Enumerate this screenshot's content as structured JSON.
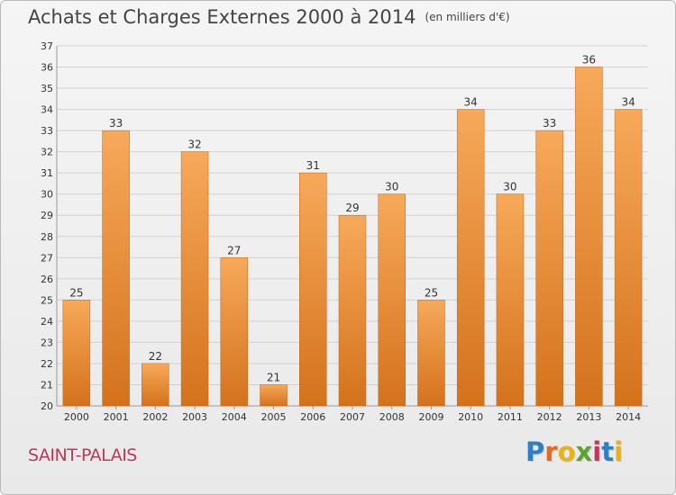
{
  "title": "Achats et Charges Externes 2000 à 2014",
  "unit": "(en milliers d'€)",
  "commune": "SAINT-PALAIS",
  "logo": {
    "letters": [
      "P",
      "r",
      "o",
      "x",
      "i",
      "t",
      "i"
    ],
    "colors": [
      "#2f7fc4",
      "#e46b1b",
      "#e8b21b",
      "#5aa531",
      "#c0375a",
      "#2f7fc4",
      "#e8b21b"
    ]
  },
  "colors": {
    "bar_top": "#f7a95a",
    "bar_bottom": "#d4721c",
    "bar_edge": "#c0661a",
    "grid": "#d2d2d2",
    "axis": "#999999"
  },
  "chart_data": {
    "type": "bar",
    "title": "Achats et Charges Externes 2000 à 2014",
    "categories": [
      "2000",
      "2001",
      "2002",
      "2003",
      "2004",
      "2005",
      "2006",
      "2007",
      "2008",
      "2009",
      "2010",
      "2011",
      "2012",
      "2013",
      "2014"
    ],
    "values": [
      25,
      33,
      22,
      32,
      27,
      21,
      31,
      29,
      30,
      25,
      34,
      30,
      33,
      36,
      34
    ],
    "ylim": [
      20,
      37
    ],
    "yticks": [
      20,
      21,
      22,
      23,
      24,
      25,
      26,
      27,
      28,
      29,
      30,
      31,
      32,
      33,
      34,
      35,
      36,
      37
    ],
    "xlabel": "",
    "ylabel": "",
    "grid": true
  }
}
